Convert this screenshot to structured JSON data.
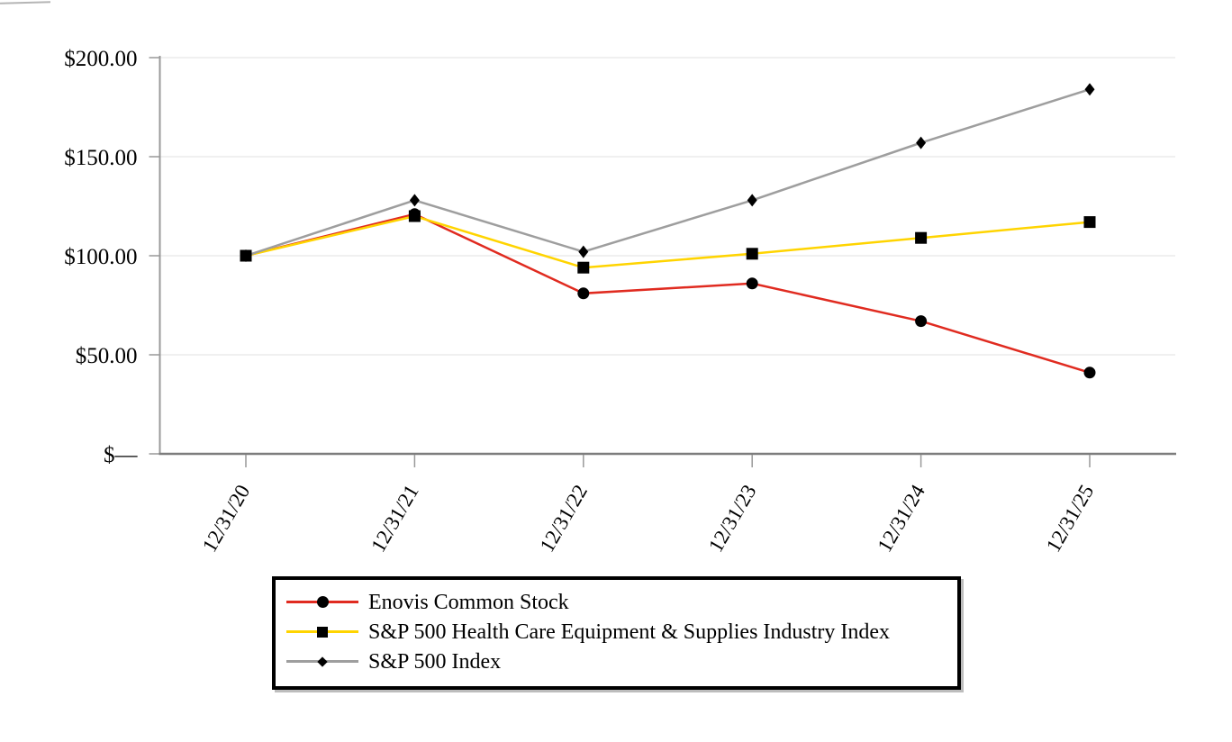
{
  "chart_data": {
    "type": "line",
    "categories": [
      "12/31/20",
      "12/31/21",
      "12/31/22",
      "12/31/23",
      "12/31/24",
      "12/31/25"
    ],
    "series": [
      {
        "name": "Enovis Common Stock",
        "color": "#e02b20",
        "marker": "circle",
        "values": [
          100,
          121,
          81,
          86,
          67,
          41
        ]
      },
      {
        "name": "S&P 500 Health Care Equipment & Supplies Industry Index",
        "color": "#ffd400",
        "marker": "square",
        "values": [
          100,
          120,
          94,
          101,
          109,
          117
        ]
      },
      {
        "name": "S&P 500 Index",
        "color": "#9e9e9e",
        "marker": "diamond",
        "values": [
          100,
          128,
          102,
          128,
          157,
          184
        ]
      }
    ],
    "y_ticks": [
      {
        "label": "$200.00",
        "value": 200
      },
      {
        "label": "$150.00",
        "value": 150
      },
      {
        "label": "$100.00",
        "value": 100
      },
      {
        "label": "$50.00",
        "value": 50
      },
      {
        "label": "$—",
        "value": 0
      }
    ],
    "ylim": [
      0,
      200
    ],
    "grid": true,
    "legend_position": "bottom",
    "marker_color": "#000000",
    "gridline_color": "#ebebeb",
    "axis_line_color": "#999999",
    "baseline_color": "#7d7d7d",
    "tick_label_color": "#000000",
    "legend_border_color": "#000000",
    "legend_background": "#ffffff"
  }
}
